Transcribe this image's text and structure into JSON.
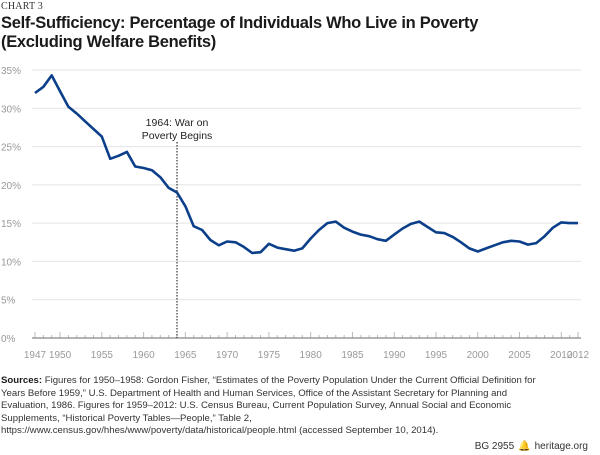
{
  "chart_label": "CHART 3",
  "chart_data": {
    "type": "line",
    "title": "Self-Sufficiency: Percentage of Individuals Who Live in Poverty (Excluding Welfare Benefits)",
    "title_lines": [
      "Self-Sufficiency: Percentage of Individuals Who Live in Poverty",
      "(Excluding Welfare Benefits)"
    ],
    "xlabel": "",
    "ylabel": "",
    "xlim": [
      1947,
      2012
    ],
    "ylim": [
      0,
      35
    ],
    "x_tick_labels": [
      "1947",
      "1950",
      "1955",
      "1960",
      "1965",
      "1970",
      "1975",
      "1980",
      "1985",
      "1990",
      "1995",
      "2000",
      "2005",
      "2010",
      "2012"
    ],
    "y_tick_labels": [
      "0%",
      "5%",
      "10%",
      "15%",
      "20%",
      "25%",
      "30%",
      "35%"
    ],
    "grid": true,
    "line_color": "#0b3f8a",
    "annotation": {
      "year": 1964,
      "lines": [
        "1964: War on",
        "Poverty Begins"
      ]
    },
    "x": [
      1947,
      1948,
      1949,
      1950,
      1951,
      1952,
      1953,
      1954,
      1955,
      1956,
      1957,
      1958,
      1959,
      1960,
      1961,
      1962,
      1963,
      1964,
      1965,
      1966,
      1967,
      1968,
      1969,
      1970,
      1971,
      1972,
      1973,
      1974,
      1975,
      1976,
      1977,
      1978,
      1979,
      1980,
      1981,
      1982,
      1983,
      1984,
      1985,
      1986,
      1987,
      1988,
      1989,
      1990,
      1991,
      1992,
      1993,
      1994,
      1995,
      1996,
      1997,
      1998,
      1999,
      2000,
      2001,
      2002,
      2003,
      2004,
      2005,
      2006,
      2007,
      2008,
      2009,
      2010,
      2011,
      2012
    ],
    "y": [
      32.0,
      32.8,
      34.3,
      32.2,
      30.2,
      29.3,
      28.3,
      27.3,
      26.3,
      23.4,
      23.8,
      24.3,
      22.4,
      22.2,
      21.9,
      21.0,
      19.6,
      19.0,
      17.2,
      14.6,
      14.1,
      12.8,
      12.1,
      12.6,
      12.5,
      11.9,
      11.1,
      11.2,
      12.3,
      11.8,
      11.6,
      11.4,
      11.7,
      13.0,
      14.1,
      15.0,
      15.2,
      14.4,
      13.9,
      13.5,
      13.3,
      12.9,
      12.7,
      13.5,
      14.3,
      14.9,
      15.2,
      14.5,
      13.8,
      13.7,
      13.2,
      12.5,
      11.7,
      11.3,
      11.7,
      12.1,
      12.5,
      12.7,
      12.6,
      12.2,
      12.4,
      13.3,
      14.4,
      15.1,
      15.0,
      15.0
    ]
  },
  "sources": {
    "label": "Sources:",
    "text": "Figures for 1950–1958: Gordon Fisher, “Estimates of the Poverty Population Under the Current Official Definition for Years Before 1959,” U.S. Department of Health and Human Services, Office of the Assistant Secretary for Planning and Evaluation, 1986. Figures for 1959–2012: U.S. Census Bureau, Current Population Survey, Annual Social and Economic Supplements, “Historical Poverty Tables—People,” Table 2, https://www.census.gov/hhes/www/poverty/data/historical/people.html (accessed September 10, 2014)."
  },
  "footer": {
    "code": "BG 2955",
    "site": "heritage.org",
    "icon": "liberty-bell-icon"
  }
}
